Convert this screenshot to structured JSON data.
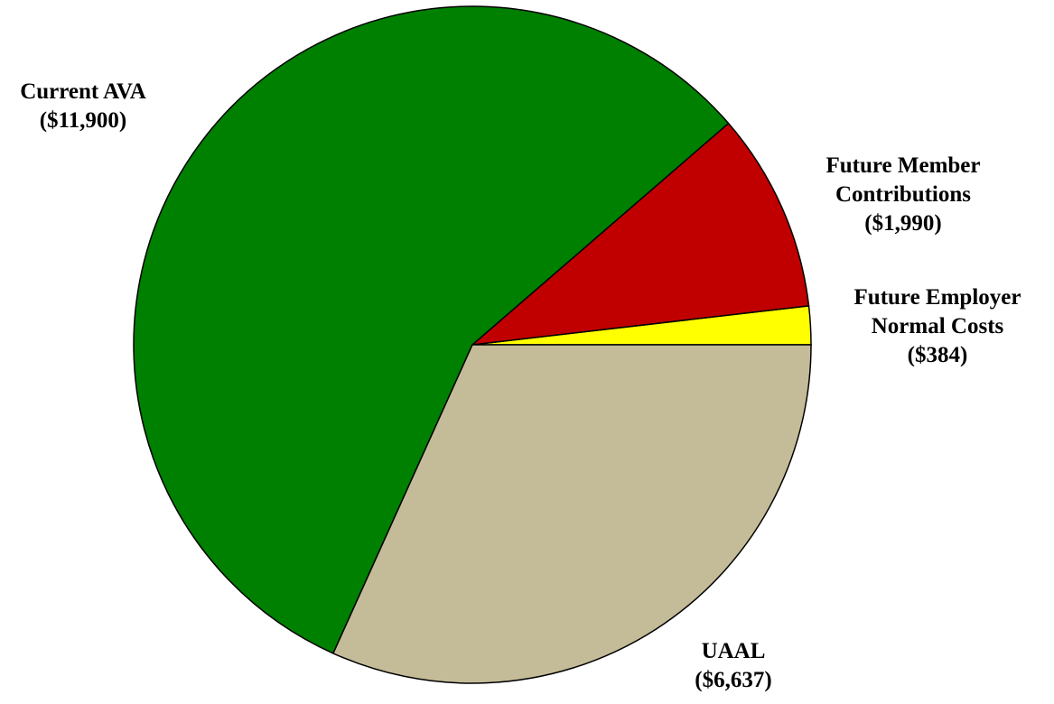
{
  "chart_data": {
    "type": "pie",
    "categories": [
      "Future Employer Normal Costs",
      "Future Member Contributions",
      "Current AVA",
      "UAAL"
    ],
    "values": [
      384,
      1990,
      11900,
      6637
    ],
    "value_labels": [
      "($384)",
      "($1,990)",
      "($11,900)",
      "($6,637)"
    ],
    "colors": [
      "#ffff00",
      "#c00000",
      "#008000",
      "#c4bc98"
    ]
  }
}
